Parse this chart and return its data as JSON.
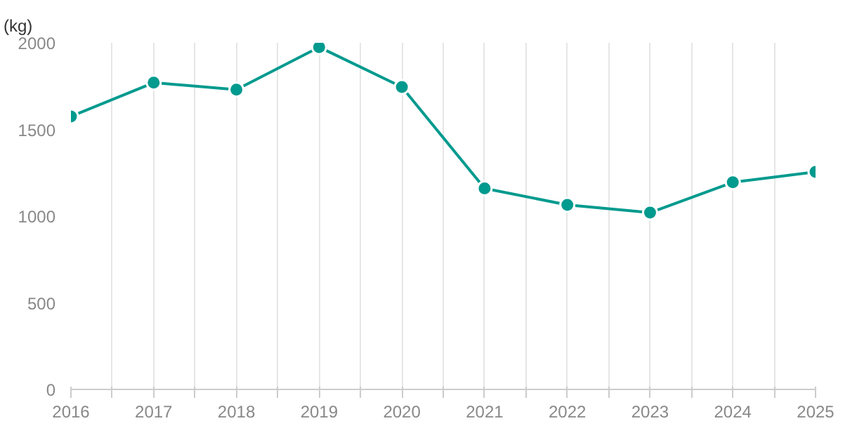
{
  "chart_data": {
    "type": "line",
    "ylabel": "(kg)",
    "x": [
      2016,
      2017,
      2018,
      2019,
      2020,
      2021,
      2022,
      2023,
      2024,
      2025
    ],
    "series": [
      {
        "color": "#009a8e",
        "values": [
          1575,
          1770,
          1730,
          1975,
          1745,
          1160,
          1065,
          1020,
          1195,
          1255
        ]
      }
    ],
    "xlim": [
      2016,
      2025
    ],
    "ylim": [
      0,
      2000
    ],
    "xticks": [
      2016,
      {
        "value": 2016.5,
        "label": null
      },
      2017,
      {
        "value": 2017.5,
        "label": null
      },
      2018,
      {
        "value": 2018.5,
        "label": null
      },
      2019,
      {
        "value": 2019.5,
        "label": null
      },
      2020,
      {
        "value": 2020.5,
        "label": null
      },
      2021,
      {
        "value": 2021.5,
        "label": null
      },
      2022,
      {
        "value": 2022.5,
        "label": null
      },
      2023,
      {
        "value": 2023.5,
        "label": null
      },
      2024,
      {
        "value": 2024.5,
        "label": null
      },
      2025
    ],
    "yticks": [
      0,
      500,
      1000,
      1500,
      2000
    ],
    "grid": "x",
    "marker": "circle",
    "line_style": "solid"
  }
}
